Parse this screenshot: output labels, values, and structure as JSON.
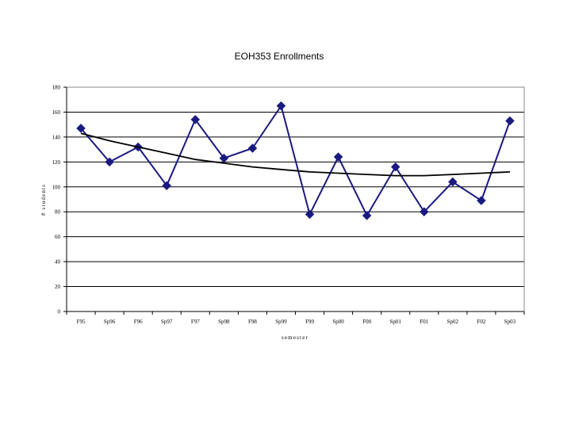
{
  "chart_data": {
    "type": "line",
    "title": "EOH353 Enrollments",
    "xlabel": "semester",
    "ylabel": "# students",
    "categories": [
      "F95",
      "Sp96",
      "F96",
      "Sp97",
      "F97",
      "Sp98",
      "F98",
      "Sp99",
      "F99",
      "Sp00",
      "F00",
      "Sp01",
      "F01",
      "Sp02",
      "F02",
      "Sp03"
    ],
    "ylim": [
      0,
      180
    ],
    "yticks": [
      "0",
      "20",
      "40",
      "60",
      "80",
      "100",
      "120",
      "140",
      "160",
      "180"
    ],
    "grid": true,
    "series": [
      {
        "values": [
          147,
          120,
          132,
          101,
          154,
          123,
          131,
          165,
          78,
          124,
          77,
          116,
          80,
          104,
          89,
          153
        ],
        "color": "#1a1a80",
        "marker": "diamond"
      },
      {
        "values": [
          143,
          137,
          132,
          127,
          122,
          119,
          116,
          114,
          112,
          111,
          110,
          109,
          109,
          110,
          111,
          112
        ],
        "color": "#000000",
        "marker": "none"
      }
    ]
  }
}
